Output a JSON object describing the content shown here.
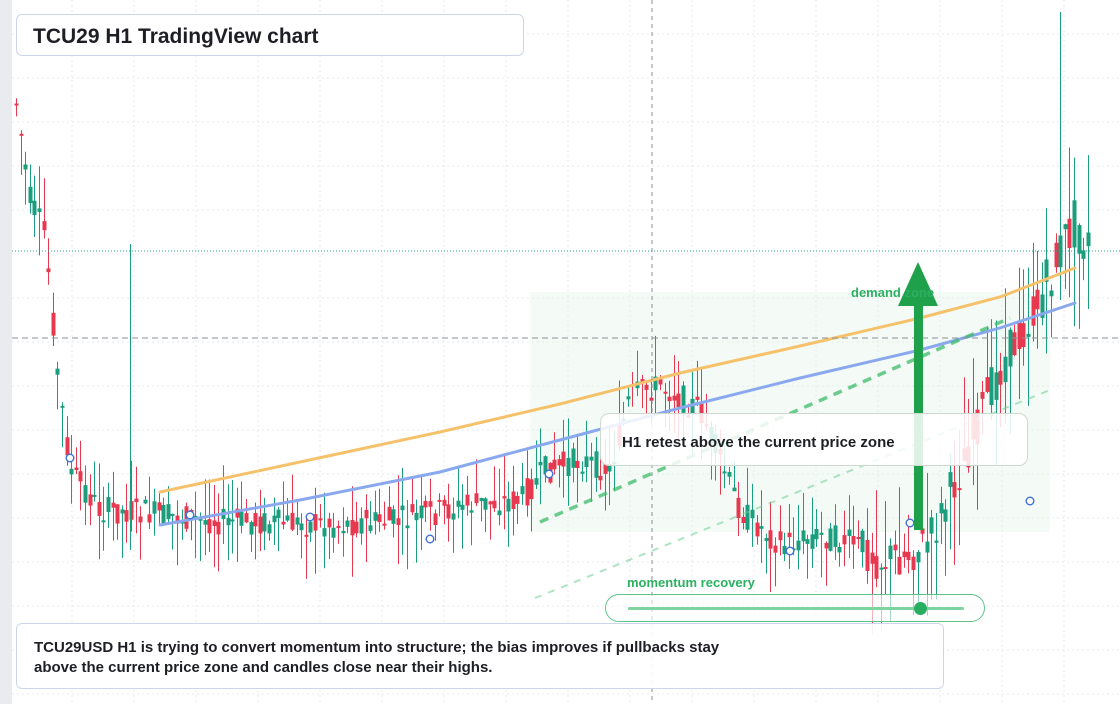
{
  "title": "TCU29 H1 TradingView chart",
  "annotations": {
    "retest": "H1 retest above the current price zone",
    "demand": "demand zone",
    "momentum": "momentum recovery",
    "note": "TCU29USD H1 is trying to convert momentum into structure; the bias improves if pullbacks stay above the current price zone and candles close near their highs."
  },
  "momentum_level": 0.87,
  "colors": {
    "up": "#1a9e7e",
    "down": "#e8384f",
    "ma_fast": "#f5c26b",
    "ma_slow": "#8aa8ee",
    "accent_green": "#1fa04a"
  },
  "chart_data": {
    "type": "candlestick",
    "timeframe": "H1",
    "symbol": "TCU29USD",
    "ylim": [
      0,
      100
    ],
    "candle_count": 120,
    "overlays": [
      "fast moving average",
      "slow moving average",
      "dashed trendline",
      "demand zone arrow"
    ],
    "grid": true,
    "legend": "none"
  }
}
